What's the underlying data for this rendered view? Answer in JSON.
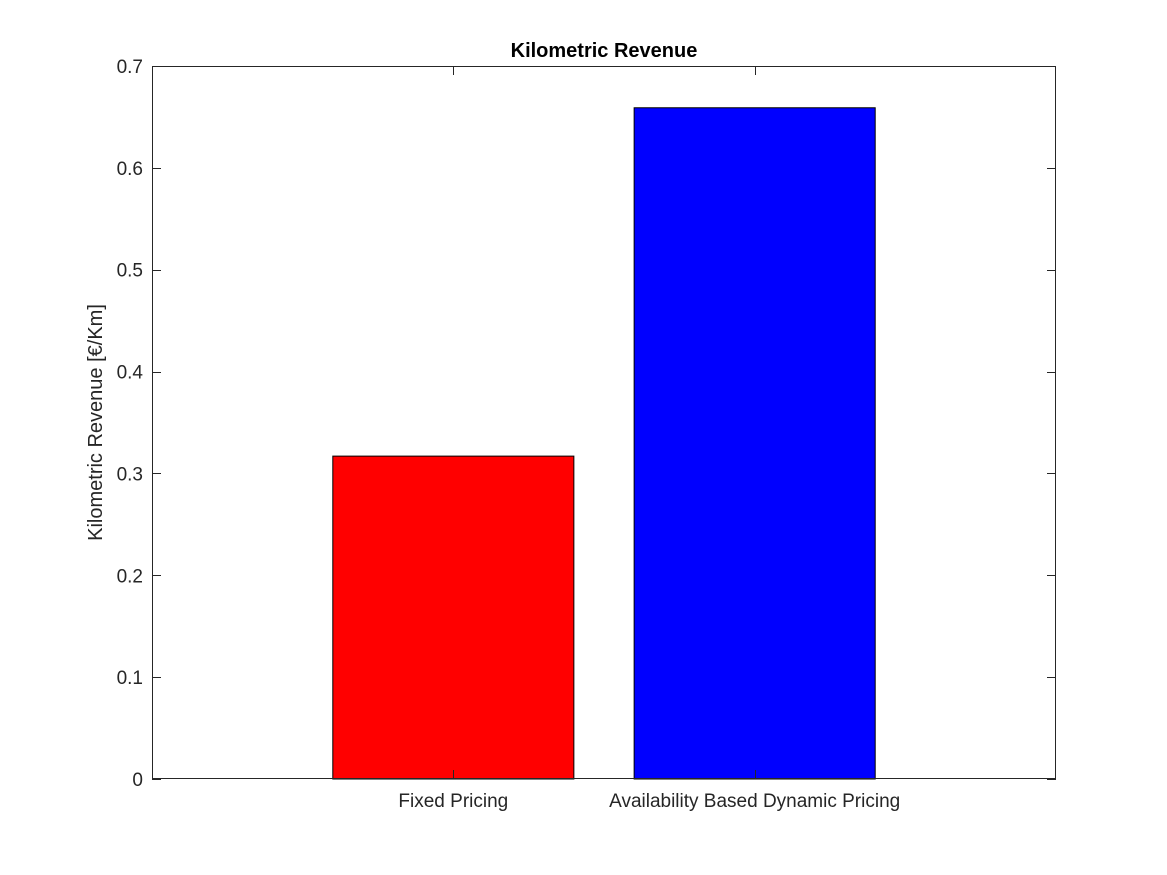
{
  "chart_data": {
    "type": "bar",
    "title": "Kilometric Revenue",
    "xlabel": "",
    "ylabel": "Kilometric Revenue [€/Km]",
    "categories": [
      "Fixed Pricing",
      "Availability Based Dynamic Pricing"
    ],
    "values": [
      0.317,
      0.659
    ],
    "bar_colors": [
      "#ff0000",
      "#0000ff"
    ],
    "ylim": [
      0,
      0.7
    ],
    "xlim": [
      0,
      3
    ],
    "yticks": [
      0,
      0.1,
      0.2,
      0.3,
      0.4,
      0.5,
      0.6,
      0.7
    ],
    "ytick_labels": [
      "0",
      "0.1",
      "0.2",
      "0.3",
      "0.4",
      "0.5",
      "0.6",
      "0.7"
    ],
    "grid": false,
    "legend": "none"
  }
}
